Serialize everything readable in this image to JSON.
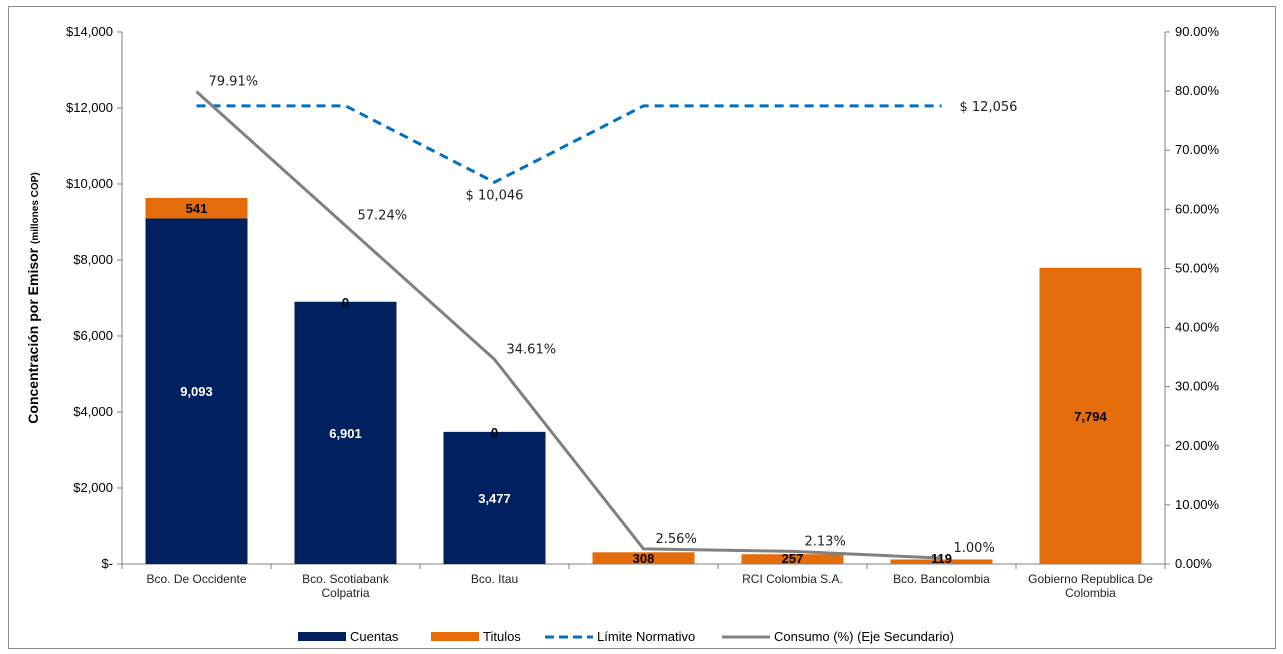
{
  "chart_data": {
    "type": "bar",
    "stacked": true,
    "title": "",
    "ylabel": "Concentración por Emisor",
    "ylabel_unit": "(millones COP)",
    "ylim": [
      0,
      14000
    ],
    "y_ticks": [
      "$-",
      "$2,000",
      "$4,000",
      "$6,000",
      "$8,000",
      "$10,000",
      "$12,000",
      "$14,000"
    ],
    "y2lim": [
      0,
      90
    ],
    "y2_ticks": [
      "0.00%",
      "10.00%",
      "20.00%",
      "30.00%",
      "40.00%",
      "50.00%",
      "60.00%",
      "70.00%",
      "80.00%",
      "90.00%"
    ],
    "categories": [
      [
        "Bco. De Occidente"
      ],
      [
        "Bco. Scotiabank",
        "Colpatria"
      ],
      [
        "Bco. Itau"
      ],
      [
        ""
      ],
      [
        "RCI Colombia S.A."
      ],
      [
        "Bco. Bancolombia"
      ],
      [
        "Gobierno Republica De",
        "Colombia"
      ]
    ],
    "series": [
      {
        "name": "Cuentas",
        "color": "#002060",
        "label_color": "#ffffff",
        "values": [
          9093,
          6901,
          3477,
          0,
          0,
          0,
          0
        ],
        "labels": [
          "9,093",
          "6,901",
          "3,477",
          "",
          "",
          "",
          ""
        ]
      },
      {
        "name": "Titulos",
        "color": "#E46C0A",
        "label_color": "#000000",
        "values": [
          541,
          0,
          0,
          308,
          257,
          119,
          7794
        ],
        "labels": [
          "541",
          "0",
          "0",
          "308",
          "257",
          "119",
          "7,794"
        ]
      }
    ],
    "limit_line": {
      "name": "Límite Normativo",
      "color": "#0070C0",
      "values": [
        12056,
        12056,
        10046,
        12056,
        12056,
        12056,
        null
      ],
      "annotations": [
        {
          "index": 2,
          "text": "$ 10,046"
        },
        {
          "index": 5,
          "text": "$ 12,056"
        }
      ]
    },
    "consumption_line": {
      "name": "Consumo (%) (Eje Secundario)",
      "color": "#808080",
      "values": [
        79.91,
        57.24,
        34.61,
        2.56,
        2.13,
        1.0,
        null
      ],
      "labels": [
        "79.91%",
        "57.24%",
        "34.61%",
        "2.56%",
        "2.13%",
        "1.00%",
        ""
      ]
    },
    "legend": {
      "position": "bottom",
      "items": [
        "Cuentas",
        "Titulos",
        "Límite Normativo",
        "Consumo (%) (Eje Secundario)"
      ]
    },
    "grid": false
  }
}
